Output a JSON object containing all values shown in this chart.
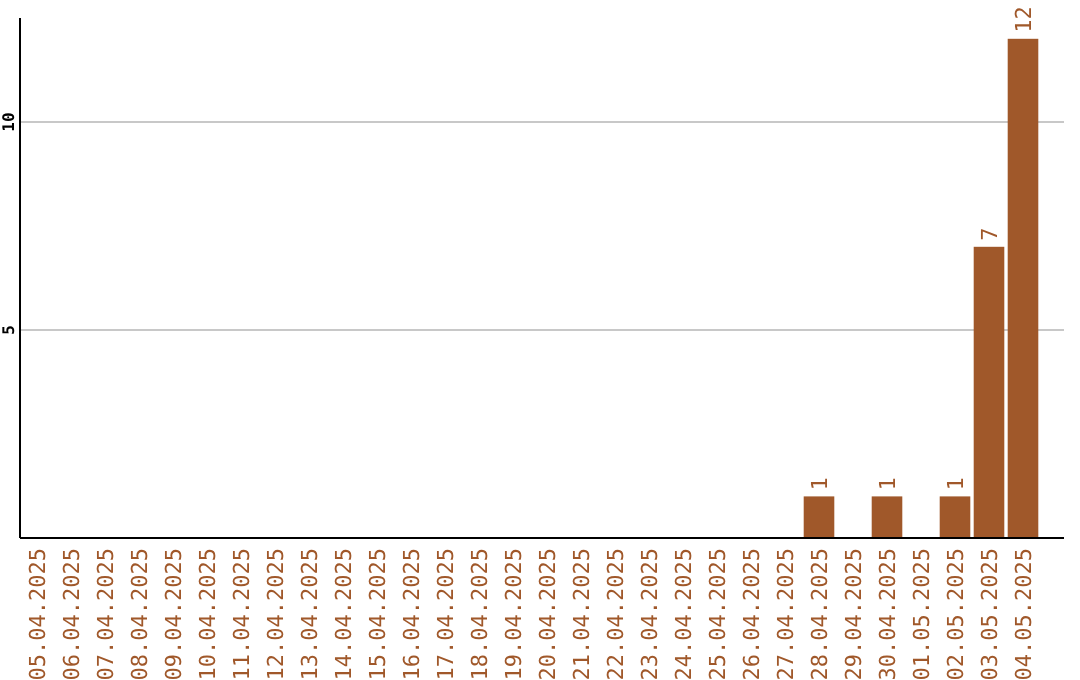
{
  "chart_data": {
    "type": "bar",
    "categories": [
      "05.04.2025",
      "06.04.2025",
      "07.04.2025",
      "08.04.2025",
      "09.04.2025",
      "10.04.2025",
      "11.04.2025",
      "12.04.2025",
      "13.04.2025",
      "14.04.2025",
      "15.04.2025",
      "16.04.2025",
      "17.04.2025",
      "18.04.2025",
      "19.04.2025",
      "20.04.2025",
      "21.04.2025",
      "22.04.2025",
      "23.04.2025",
      "24.04.2025",
      "25.04.2025",
      "26.04.2025",
      "27.04.2025",
      "28.04.2025",
      "29.04.2025",
      "30.04.2025",
      "01.05.2025",
      "02.05.2025",
      "03.05.2025",
      "04.05.2025"
    ],
    "values": [
      0,
      0,
      0,
      0,
      0,
      0,
      0,
      0,
      0,
      0,
      0,
      0,
      0,
      0,
      0,
      0,
      0,
      0,
      0,
      0,
      0,
      0,
      0,
      1,
      0,
      1,
      0,
      1,
      7,
      12
    ],
    "value_labels": [
      null,
      null,
      null,
      null,
      null,
      null,
      null,
      null,
      null,
      null,
      null,
      null,
      null,
      null,
      null,
      null,
      null,
      null,
      null,
      null,
      null,
      null,
      null,
      "1",
      null,
      "1",
      null,
      "1",
      "7",
      "12"
    ],
    "color": "#a0582a",
    "ylim": [
      0,
      12.5
    ],
    "yticks": [
      5,
      10
    ],
    "grid": "y"
  }
}
